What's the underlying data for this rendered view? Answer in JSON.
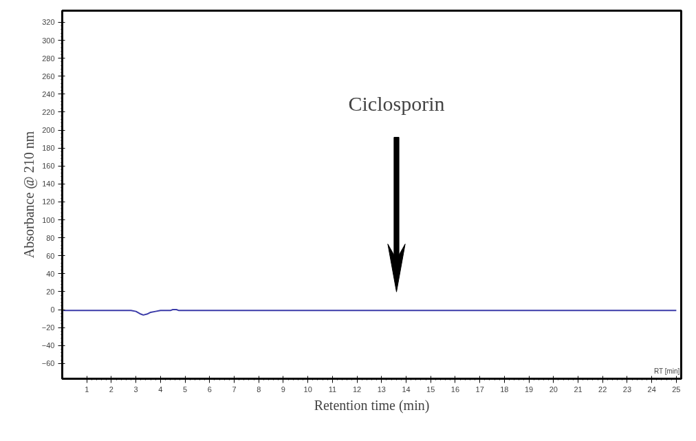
{
  "chart_data": {
    "type": "line",
    "xlabel": "Retention time (min)",
    "ylabel": "Absorbance @ 210 nm",
    "x": [
      0.05,
      2.8,
      3.0,
      3.2,
      3.3,
      3.45,
      3.6,
      3.8,
      4.0,
      4.4,
      4.5,
      4.65,
      4.75,
      25.0
    ],
    "series": [
      {
        "color": "#3a3aa8",
        "values": [
          -1,
          -1,
          -2,
          -5,
          -6,
          -5,
          -3,
          -2,
          -1,
          -1,
          0,
          0,
          -1,
          -1
        ]
      }
    ],
    "annotations": [
      "Ciclosporin",
      "RT [min]"
    ],
    "xlim": [
      0,
      25.2
    ],
    "ylim": [
      -77,
      333
    ],
    "xticks": [
      1,
      2,
      3,
      4,
      5,
      6,
      7,
      8,
      9,
      10,
      11,
      12,
      13,
      14,
      15,
      16,
      17,
      18,
      19,
      20,
      21,
      22,
      23,
      24,
      25
    ],
    "yticks": [
      -60,
      -40,
      -20,
      0,
      20,
      40,
      60,
      80,
      100,
      120,
      140,
      160,
      180,
      200,
      220,
      240,
      260,
      280,
      300,
      320
    ],
    "grid": false,
    "marker": "none",
    "line_style": "solid"
  }
}
